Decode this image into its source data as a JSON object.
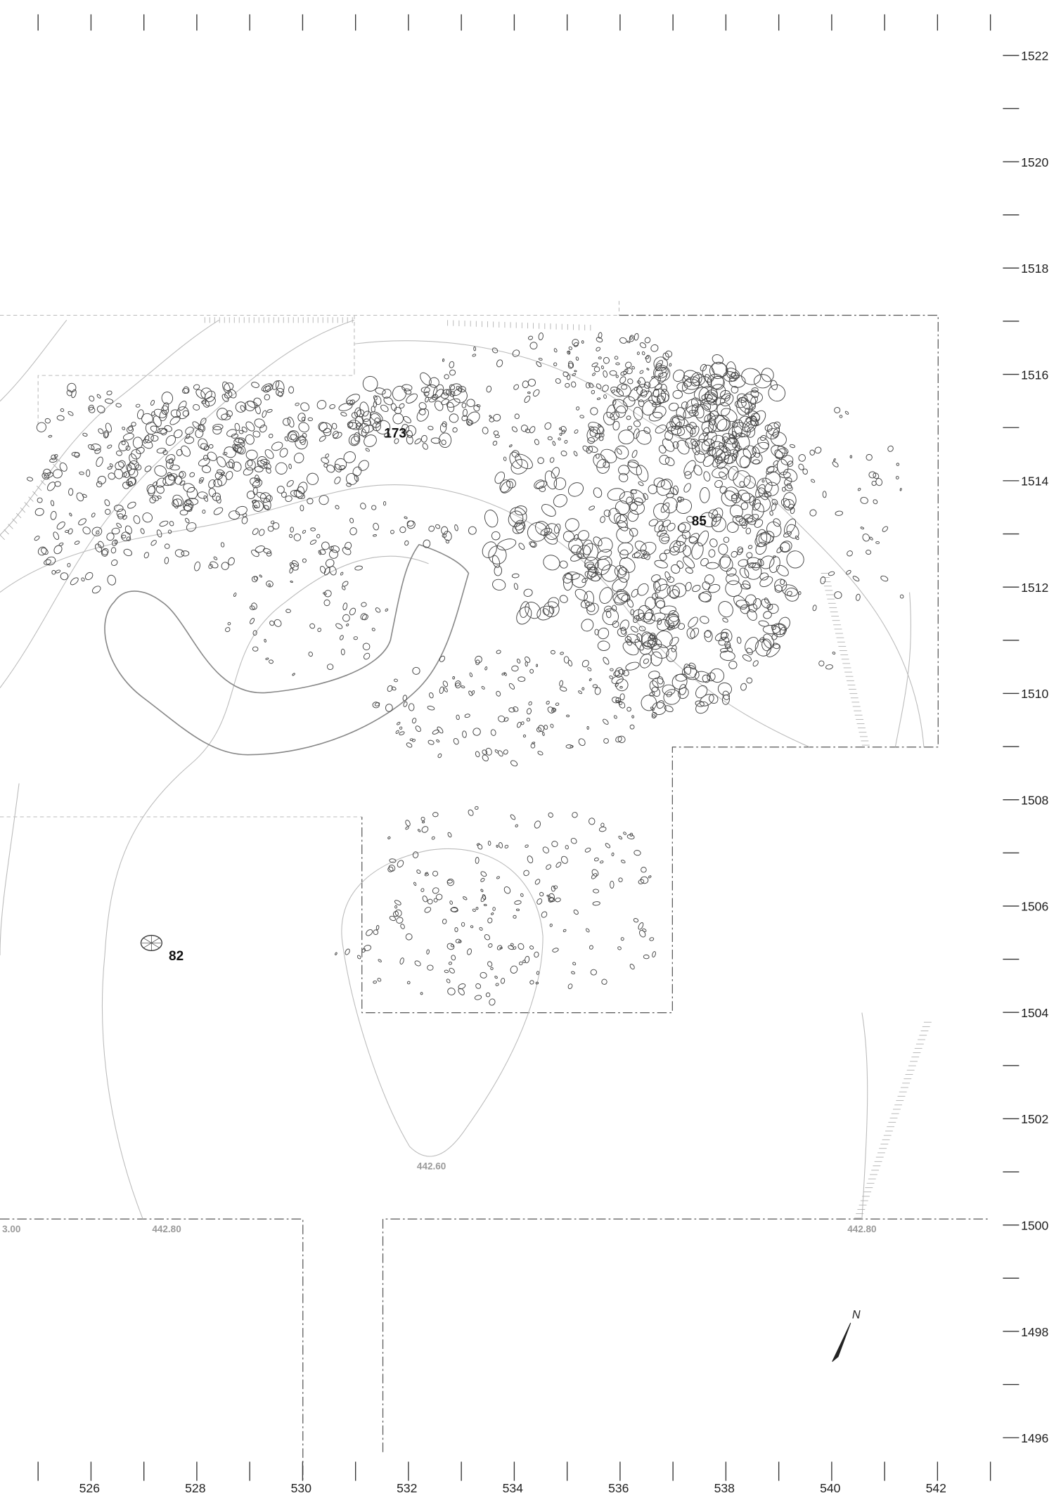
{
  "x_axis": {
    "labels": [
      526,
      528,
      530,
      532,
      534,
      536,
      538,
      540,
      542
    ]
  },
  "y_axis": {
    "labels": [
      1522,
      1520,
      1518,
      1516,
      1514,
      1512,
      1510,
      1508,
      1506,
      1504,
      1502,
      1500,
      1498,
      1496
    ]
  },
  "features": [
    {
      "label": "173"
    },
    {
      "label": "85"
    },
    {
      "label": "82"
    }
  ],
  "contours": [
    {
      "label": "3.00"
    },
    {
      "label": "442.80"
    },
    {
      "label": "442.60"
    },
    {
      "label": "442.80"
    }
  ],
  "north_arrow": {
    "label": "N"
  }
}
